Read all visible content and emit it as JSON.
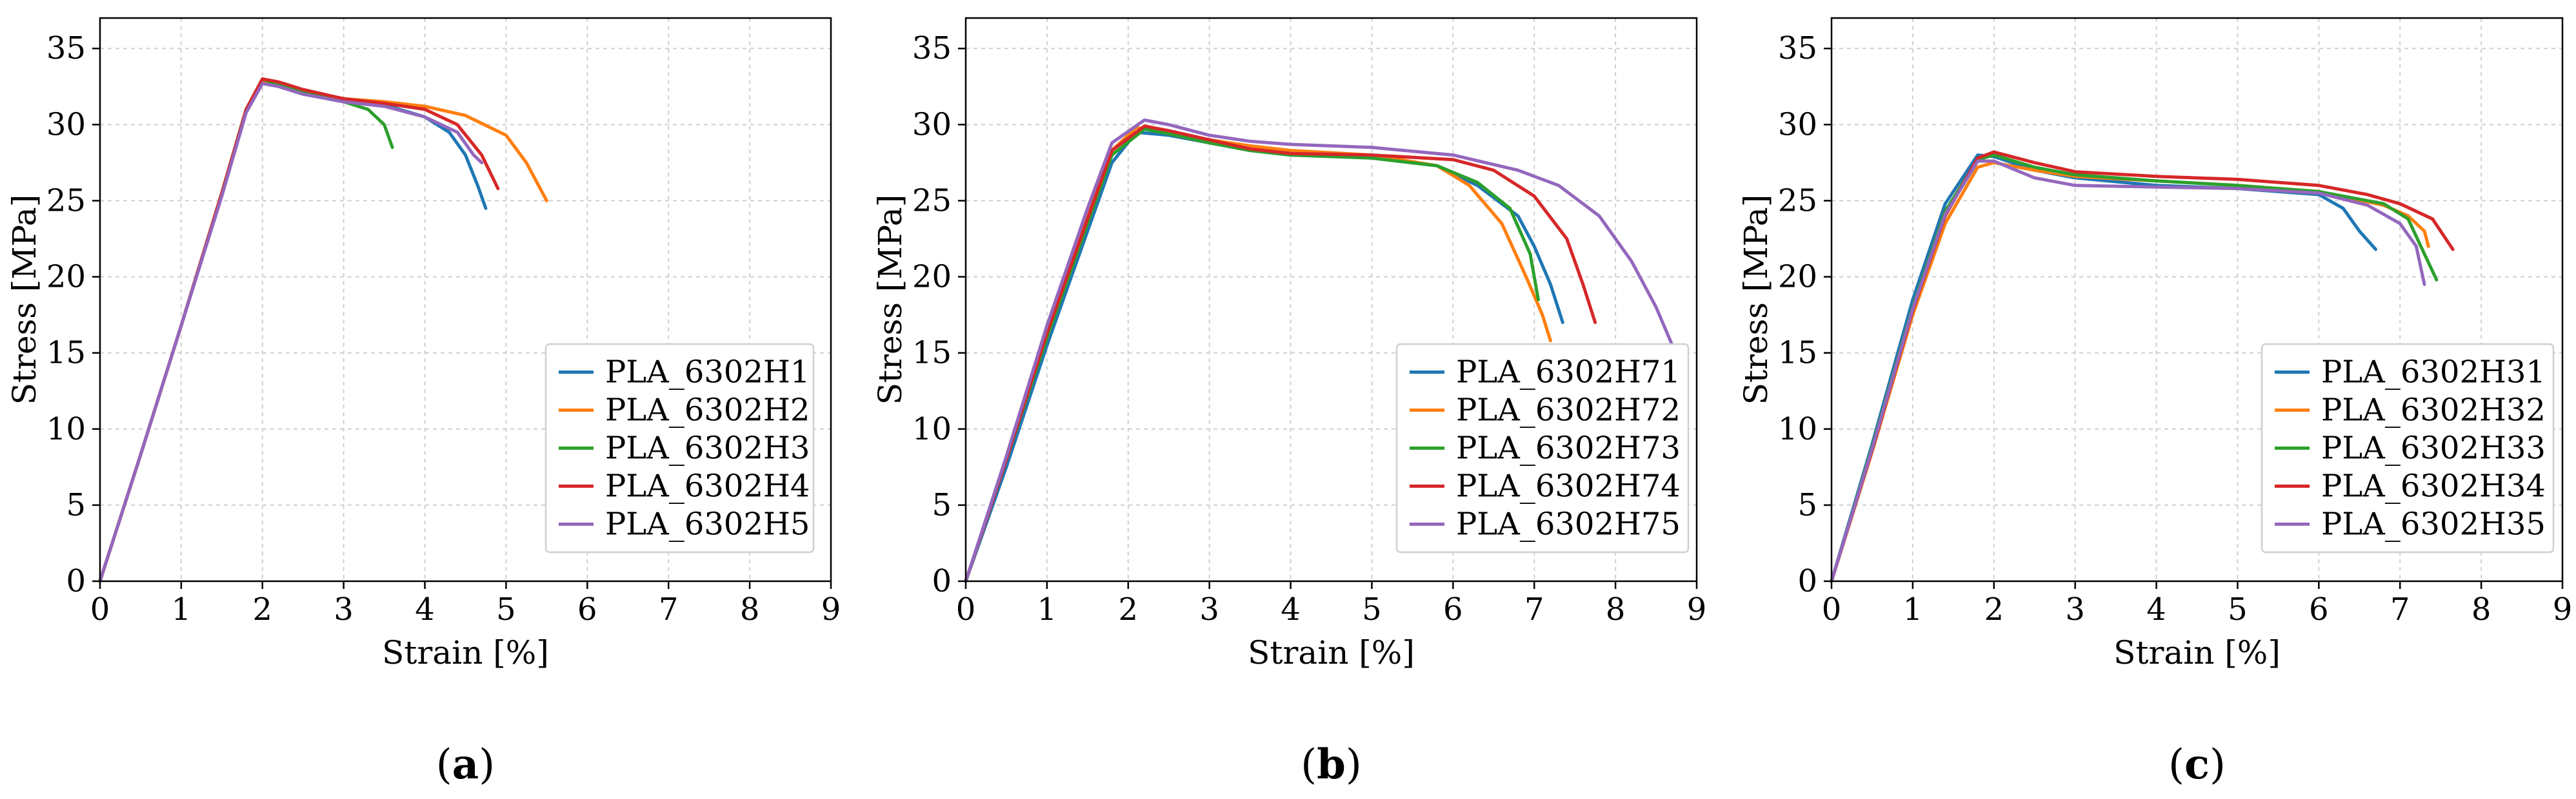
{
  "colors": {
    "blue": "#1f77b4",
    "orange": "#ff7f0e",
    "green": "#2ca02c",
    "red": "#d62728",
    "purple": "#9467bd"
  },
  "chart_data": [
    {
      "type": "line",
      "caption_letter": "a",
      "xlabel": "Strain [%]",
      "ylabel": "Stress [MPa]",
      "xlim": [
        0,
        9
      ],
      "ylim": [
        0,
        37
      ],
      "xticks": [
        0,
        1,
        2,
        3,
        4,
        5,
        6,
        7,
        8,
        9
      ],
      "yticks": [
        0,
        5,
        10,
        15,
        20,
        25,
        30,
        35
      ],
      "grid": true,
      "legend_position": "lower-right",
      "series": [
        {
          "name": "PLA_6302H1",
          "color": "#1f77b4",
          "points": [
            [
              0,
              0
            ],
            [
              0.5,
              8.3
            ],
            [
              1,
              16.8
            ],
            [
              1.5,
              25.5
            ],
            [
              1.8,
              31.0
            ],
            [
              2.0,
              32.9
            ],
            [
              2.2,
              32.5
            ],
            [
              2.5,
              32.0
            ],
            [
              3,
              31.5
            ],
            [
              3.5,
              31.3
            ],
            [
              4,
              30.5
            ],
            [
              4.3,
              29.5
            ],
            [
              4.5,
              28.0
            ],
            [
              4.65,
              26.0
            ],
            [
              4.75,
              24.5
            ]
          ]
        },
        {
          "name": "PLA_6302H2",
          "color": "#ff7f0e",
          "points": [
            [
              0,
              0
            ],
            [
              0.5,
              8.3
            ],
            [
              1,
              16.8
            ],
            [
              1.5,
              25.5
            ],
            [
              1.8,
              31.0
            ],
            [
              2.0,
              32.9
            ],
            [
              2.2,
              32.6
            ],
            [
              2.5,
              32.2
            ],
            [
              3,
              31.7
            ],
            [
              3.5,
              31.5
            ],
            [
              4,
              31.2
            ],
            [
              4.5,
              30.6
            ],
            [
              5,
              29.3
            ],
            [
              5.25,
              27.5
            ],
            [
              5.4,
              26.0
            ],
            [
              5.5,
              25.0
            ]
          ]
        },
        {
          "name": "PLA_6302H3",
          "color": "#2ca02c",
          "points": [
            [
              0,
              0
            ],
            [
              0.5,
              8.3
            ],
            [
              1,
              16.8
            ],
            [
              1.5,
              25.5
            ],
            [
              1.8,
              31.0
            ],
            [
              2.0,
              33.0
            ],
            [
              2.2,
              32.6
            ],
            [
              2.5,
              32.2
            ],
            [
              3,
              31.5
            ],
            [
              3.3,
              31.0
            ],
            [
              3.5,
              30.0
            ],
            [
              3.6,
              28.5
            ]
          ]
        },
        {
          "name": "PLA_6302H4",
          "color": "#d62728",
          "points": [
            [
              0,
              0
            ],
            [
              0.5,
              8.3
            ],
            [
              1,
              16.8
            ],
            [
              1.5,
              25.5
            ],
            [
              1.8,
              31.0
            ],
            [
              2.0,
              33.0
            ],
            [
              2.2,
              32.8
            ],
            [
              2.5,
              32.3
            ],
            [
              3,
              31.7
            ],
            [
              3.5,
              31.4
            ],
            [
              4,
              31.0
            ],
            [
              4.4,
              30.0
            ],
            [
              4.7,
              28.0
            ],
            [
              4.9,
              25.8
            ]
          ]
        },
        {
          "name": "PLA_6302H5",
          "color": "#9467bd",
          "points": [
            [
              0,
              0
            ],
            [
              0.5,
              8.3
            ],
            [
              1,
              16.8
            ],
            [
              1.5,
              25.3
            ],
            [
              1.8,
              30.8
            ],
            [
              2.0,
              32.7
            ],
            [
              2.2,
              32.5
            ],
            [
              2.5,
              32.0
            ],
            [
              3,
              31.5
            ],
            [
              3.5,
              31.2
            ],
            [
              4,
              30.5
            ],
            [
              4.4,
              29.5
            ],
            [
              4.6,
              28.0
            ],
            [
              4.7,
              27.5
            ]
          ]
        }
      ]
    },
    {
      "type": "line",
      "caption_letter": "b",
      "xlabel": "Strain [%]",
      "ylabel": "Stress [MPa]",
      "xlim": [
        0,
        9
      ],
      "ylim": [
        0,
        37
      ],
      "xticks": [
        0,
        1,
        2,
        3,
        4,
        5,
        6,
        7,
        8,
        9
      ],
      "yticks": [
        0,
        5,
        10,
        15,
        20,
        25,
        30,
        35
      ],
      "grid": true,
      "legend_position": "lower-right",
      "series": [
        {
          "name": "PLA_6302H71",
          "color": "#1f77b4",
          "points": [
            [
              0,
              0
            ],
            [
              0.5,
              7.5
            ],
            [
              1,
              15.5
            ],
            [
              1.5,
              23.0
            ],
            [
              1.8,
              27.5
            ],
            [
              2.1,
              29.5
            ],
            [
              2.5,
              29.3
            ],
            [
              3,
              28.8
            ],
            [
              3.5,
              28.3
            ],
            [
              4,
              28.0
            ],
            [
              5,
              27.8
            ],
            [
              5.8,
              27.3
            ],
            [
              6.3,
              26.0
            ],
            [
              6.8,
              24.0
            ],
            [
              7.0,
              22.0
            ],
            [
              7.2,
              19.5
            ],
            [
              7.35,
              17.0
            ]
          ]
        },
        {
          "name": "PLA_6302H72",
          "color": "#ff7f0e",
          "points": [
            [
              0,
              0
            ],
            [
              0.5,
              8.0
            ],
            [
              1,
              16.5
            ],
            [
              1.5,
              24.0
            ],
            [
              1.8,
              28.3
            ],
            [
              2.1,
              29.8
            ],
            [
              2.5,
              29.5
            ],
            [
              3,
              29.0
            ],
            [
              3.5,
              28.6
            ],
            [
              4,
              28.3
            ],
            [
              5,
              28.0
            ],
            [
              5.8,
              27.3
            ],
            [
              6.2,
              26.0
            ],
            [
              6.6,
              23.5
            ],
            [
              6.9,
              20.0
            ],
            [
              7.1,
              17.5
            ],
            [
              7.2,
              15.8
            ]
          ]
        },
        {
          "name": "PLA_6302H73",
          "color": "#2ca02c",
          "points": [
            [
              0,
              0
            ],
            [
              0.5,
              8.0
            ],
            [
              1,
              16.0
            ],
            [
              1.5,
              23.5
            ],
            [
              1.8,
              28.0
            ],
            [
              2.2,
              29.7
            ],
            [
              2.5,
              29.4
            ],
            [
              3,
              28.8
            ],
            [
              3.5,
              28.3
            ],
            [
              4,
              28.0
            ],
            [
              5,
              27.8
            ],
            [
              5.8,
              27.3
            ],
            [
              6.3,
              26.2
            ],
            [
              6.7,
              24.5
            ],
            [
              6.95,
              21.5
            ],
            [
              7.05,
              18.5
            ]
          ]
        },
        {
          "name": "PLA_6302H74",
          "color": "#d62728",
          "points": [
            [
              0,
              0
            ],
            [
              0.5,
              8.0
            ],
            [
              1,
              16.3
            ],
            [
              1.5,
              23.8
            ],
            [
              1.8,
              28.3
            ],
            [
              2.2,
              29.9
            ],
            [
              2.5,
              29.6
            ],
            [
              3,
              29.0
            ],
            [
              3.5,
              28.4
            ],
            [
              4,
              28.1
            ],
            [
              5,
              28.0
            ],
            [
              6,
              27.7
            ],
            [
              6.5,
              27.0
            ],
            [
              7,
              25.3
            ],
            [
              7.4,
              22.5
            ],
            [
              7.6,
              19.5
            ],
            [
              7.75,
              17.0
            ]
          ]
        },
        {
          "name": "PLA_6302H75",
          "color": "#9467bd",
          "points": [
            [
              0,
              0
            ],
            [
              0.5,
              8.2
            ],
            [
              1,
              16.8
            ],
            [
              1.5,
              24.5
            ],
            [
              1.8,
              28.8
            ],
            [
              2.2,
              30.3
            ],
            [
              2.5,
              30.0
            ],
            [
              3,
              29.3
            ],
            [
              3.5,
              28.9
            ],
            [
              4,
              28.7
            ],
            [
              5,
              28.5
            ],
            [
              6,
              28.0
            ],
            [
              6.8,
              27.0
            ],
            [
              7.3,
              26.0
            ],
            [
              7.8,
              24.0
            ],
            [
              8.2,
              21.0
            ],
            [
              8.5,
              18.0
            ],
            [
              8.7,
              15.5
            ]
          ]
        }
      ]
    },
    {
      "type": "line",
      "caption_letter": "c",
      "xlabel": "Strain [%]",
      "ylabel": "Stress [MPa]",
      "xlim": [
        0,
        9
      ],
      "ylim": [
        0,
        37
      ],
      "xticks": [
        0,
        1,
        2,
        3,
        4,
        5,
        6,
        7,
        8,
        9
      ],
      "yticks": [
        0,
        5,
        10,
        15,
        20,
        25,
        30,
        35
      ],
      "grid": true,
      "legend_position": "lower-right",
      "series": [
        {
          "name": "PLA_6302H31",
          "color": "#1f77b4",
          "points": [
            [
              0,
              0
            ],
            [
              0.5,
              9.0
            ],
            [
              1,
              18.5
            ],
            [
              1.4,
              24.8
            ],
            [
              1.8,
              28.0
            ],
            [
              2.0,
              27.9
            ],
            [
              2.5,
              27.0
            ],
            [
              3,
              26.5
            ],
            [
              4,
              26.0
            ],
            [
              5,
              25.8
            ],
            [
              6,
              25.4
            ],
            [
              6.3,
              24.5
            ],
            [
              6.5,
              23.0
            ],
            [
              6.7,
              21.8
            ]
          ]
        },
        {
          "name": "PLA_6302H32",
          "color": "#ff7f0e",
          "points": [
            [
              0,
              0
            ],
            [
              0.5,
              8.5
            ],
            [
              1,
              17.5
            ],
            [
              1.4,
              23.5
            ],
            [
              1.8,
              27.2
            ],
            [
              2.0,
              27.5
            ],
            [
              2.5,
              27.0
            ],
            [
              3,
              26.6
            ],
            [
              4,
              26.3
            ],
            [
              5,
              26.0
            ],
            [
              6,
              25.6
            ],
            [
              6.8,
              24.7
            ],
            [
              7.1,
              24.0
            ],
            [
              7.3,
              23.0
            ],
            [
              7.35,
              22.0
            ]
          ]
        },
        {
          "name": "PLA_6302H33",
          "color": "#2ca02c",
          "points": [
            [
              0,
              0
            ],
            [
              0.5,
              8.8
            ],
            [
              1,
              18.0
            ],
            [
              1.4,
              24.3
            ],
            [
              1.8,
              27.7
            ],
            [
              2.0,
              28.0
            ],
            [
              2.5,
              27.2
            ],
            [
              3,
              26.7
            ],
            [
              4,
              26.3
            ],
            [
              5,
              26.0
            ],
            [
              6,
              25.6
            ],
            [
              6.8,
              24.8
            ],
            [
              7.1,
              23.8
            ],
            [
              7.3,
              21.5
            ],
            [
              7.45,
              19.8
            ]
          ]
        },
        {
          "name": "PLA_6302H34",
          "color": "#d62728",
          "points": [
            [
              0,
              0
            ],
            [
              0.5,
              8.6
            ],
            [
              1,
              17.8
            ],
            [
              1.4,
              24.0
            ],
            [
              1.8,
              27.8
            ],
            [
              2.0,
              28.2
            ],
            [
              2.5,
              27.5
            ],
            [
              3,
              26.9
            ],
            [
              4,
              26.6
            ],
            [
              5,
              26.4
            ],
            [
              6,
              26.0
            ],
            [
              6.6,
              25.4
            ],
            [
              7,
              24.8
            ],
            [
              7.4,
              23.8
            ],
            [
              7.65,
              21.8
            ]
          ]
        },
        {
          "name": "PLA_6302H35",
          "color": "#9467bd",
          "points": [
            [
              0,
              0
            ],
            [
              0.5,
              8.7
            ],
            [
              1,
              17.9
            ],
            [
              1.4,
              24.1
            ],
            [
              1.8,
              27.6
            ],
            [
              2.0,
              27.6
            ],
            [
              2.5,
              26.5
            ],
            [
              3,
              26.0
            ],
            [
              4,
              25.9
            ],
            [
              5,
              25.8
            ],
            [
              6,
              25.5
            ],
            [
              6.6,
              24.7
            ],
            [
              7.0,
              23.5
            ],
            [
              7.2,
              22.0
            ],
            [
              7.3,
              19.5
            ]
          ]
        }
      ]
    }
  ]
}
